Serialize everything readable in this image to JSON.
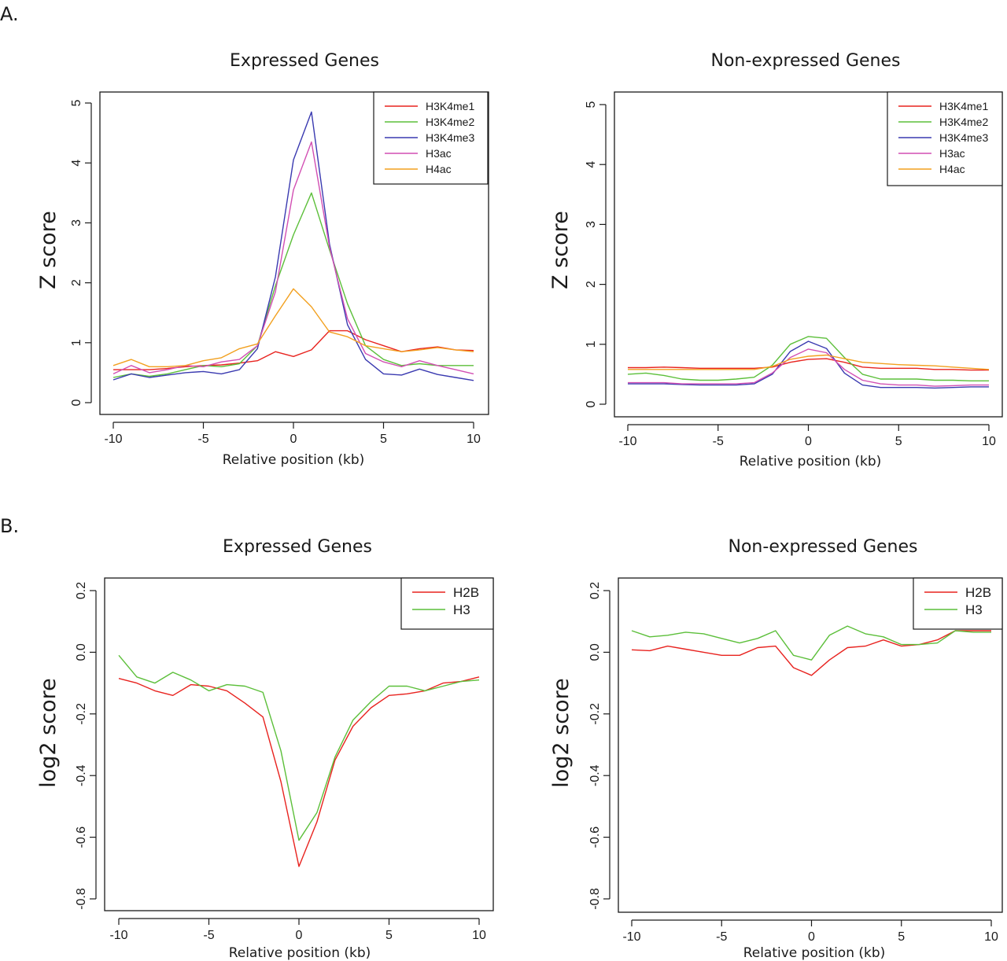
{
  "panels": [
    {
      "label": "A."
    },
    {
      "label": "B."
    }
  ],
  "chart_data": [
    {
      "type": "line",
      "title": "Expressed Genes",
      "xlabel": "Relative position (kb)",
      "ylabel": "Z score",
      "xlim": [
        -10,
        10
      ],
      "ylim": [
        0,
        5
      ],
      "xticks": [
        -10,
        -5,
        0,
        5,
        10
      ],
      "yticks": [
        0,
        1,
        2,
        3,
        4,
        5
      ],
      "x": [
        -10,
        -9,
        -8,
        -7,
        -6,
        -5,
        -4,
        -3,
        -2,
        -1,
        0,
        1,
        2,
        3,
        4,
        5,
        6,
        7,
        8,
        9,
        10
      ],
      "legend_position": "top-right",
      "series": [
        {
          "name": "H3K4me1",
          "color": "#e8231f",
          "values": [
            0.55,
            0.55,
            0.55,
            0.57,
            0.6,
            0.62,
            0.63,
            0.66,
            0.7,
            0.85,
            0.77,
            0.88,
            1.2,
            1.2,
            1.05,
            0.95,
            0.85,
            0.9,
            0.93,
            0.88,
            0.87
          ]
        },
        {
          "name": "H3K4me2",
          "color": "#5cbf3a",
          "values": [
            0.42,
            0.48,
            0.44,
            0.48,
            0.55,
            0.62,
            0.6,
            0.65,
            0.95,
            1.95,
            2.8,
            3.5,
            2.55,
            1.65,
            0.95,
            0.72,
            0.62,
            0.65,
            0.62,
            0.62,
            0.62
          ]
        },
        {
          "name": "H3K4me3",
          "color": "#3a3ab0",
          "values": [
            0.38,
            0.48,
            0.42,
            0.46,
            0.5,
            0.52,
            0.48,
            0.55,
            0.9,
            2.1,
            4.05,
            4.85,
            2.65,
            1.3,
            0.72,
            0.48,
            0.46,
            0.56,
            0.47,
            0.42,
            0.37
          ]
        },
        {
          "name": "H3ac",
          "color": "#d24fb3",
          "values": [
            0.48,
            0.62,
            0.5,
            0.55,
            0.62,
            0.6,
            0.68,
            0.72,
            0.95,
            1.85,
            3.55,
            4.35,
            2.6,
            1.4,
            0.82,
            0.68,
            0.6,
            0.7,
            0.62,
            0.55,
            0.48
          ]
        },
        {
          "name": "H4ac",
          "color": "#f2a01f",
          "values": [
            0.62,
            0.72,
            0.6,
            0.6,
            0.62,
            0.7,
            0.75,
            0.9,
            0.98,
            1.45,
            1.9,
            1.6,
            1.18,
            1.1,
            0.95,
            0.9,
            0.85,
            0.88,
            0.92,
            0.88,
            0.85
          ]
        }
      ]
    },
    {
      "type": "line",
      "title": "Non-expressed Genes",
      "xlabel": "Relative position (kb)",
      "ylabel": "Z score",
      "xlim": [
        -10,
        10
      ],
      "ylim": [
        0,
        5
      ],
      "xticks": [
        -10,
        -5,
        0,
        5,
        10
      ],
      "yticks": [
        0,
        1,
        2,
        3,
        4,
        5
      ],
      "x": [
        -10,
        -9,
        -8,
        -7,
        -6,
        -5,
        -4,
        -3,
        -2,
        -1,
        0,
        1,
        2,
        3,
        4,
        5,
        6,
        7,
        8,
        9,
        10
      ],
      "legend_position": "top-right",
      "series": [
        {
          "name": "H3K4me1",
          "color": "#e8231f",
          "values": [
            0.61,
            0.61,
            0.62,
            0.61,
            0.6,
            0.6,
            0.6,
            0.6,
            0.62,
            0.7,
            0.75,
            0.76,
            0.7,
            0.62,
            0.6,
            0.6,
            0.6,
            0.58,
            0.58,
            0.57,
            0.57
          ]
        },
        {
          "name": "H3K4me2",
          "color": "#5cbf3a",
          "values": [
            0.5,
            0.52,
            0.48,
            0.42,
            0.4,
            0.4,
            0.42,
            0.45,
            0.65,
            1.0,
            1.13,
            1.1,
            0.78,
            0.5,
            0.42,
            0.42,
            0.42,
            0.4,
            0.4,
            0.39,
            0.39
          ]
        },
        {
          "name": "H3K4me3",
          "color": "#3a3ab0",
          "values": [
            0.34,
            0.34,
            0.34,
            0.33,
            0.32,
            0.32,
            0.32,
            0.34,
            0.5,
            0.88,
            1.05,
            0.93,
            0.52,
            0.32,
            0.28,
            0.28,
            0.28,
            0.27,
            0.28,
            0.29,
            0.29
          ]
        },
        {
          "name": "H3ac",
          "color": "#d24fb3",
          "values": [
            0.36,
            0.36,
            0.36,
            0.34,
            0.34,
            0.34,
            0.34,
            0.36,
            0.52,
            0.78,
            0.92,
            0.86,
            0.58,
            0.4,
            0.34,
            0.32,
            0.32,
            0.3,
            0.31,
            0.32,
            0.32
          ]
        },
        {
          "name": "H4ac",
          "color": "#f2a01f",
          "values": [
            0.58,
            0.58,
            0.58,
            0.58,
            0.58,
            0.58,
            0.58,
            0.58,
            0.63,
            0.75,
            0.8,
            0.82,
            0.76,
            0.7,
            0.68,
            0.66,
            0.65,
            0.64,
            0.62,
            0.6,
            0.58
          ]
        }
      ]
    },
    {
      "type": "line",
      "title": "Expressed Genes",
      "xlabel": "Relative position (kb)",
      "ylabel": "log2 score",
      "xlim": [
        -10,
        10
      ],
      "ylim": [
        -0.8,
        0.2
      ],
      "xticks": [
        -10,
        -5,
        0,
        5,
        10
      ],
      "yticks": [
        -0.8,
        -0.6,
        -0.4,
        -0.2,
        0.0,
        0.2
      ],
      "ytick_labels": [
        "-0.8",
        "-0.6",
        "-0.4",
        "-0.2",
        "0.0",
        "0.2"
      ],
      "x": [
        -10,
        -9,
        -8,
        -7,
        -6,
        -5,
        -4,
        -3,
        -2,
        -1,
        0,
        1,
        2,
        3,
        4,
        5,
        6,
        7,
        8,
        9,
        10
      ],
      "legend_position": "top-right",
      "series": [
        {
          "name": "H2B",
          "color": "#e8231f",
          "values": [
            -0.085,
            -0.1,
            -0.125,
            -0.14,
            -0.105,
            -0.11,
            -0.125,
            -0.165,
            -0.21,
            -0.42,
            -0.695,
            -0.55,
            -0.35,
            -0.24,
            -0.18,
            -0.14,
            -0.135,
            -0.125,
            -0.1,
            -0.095,
            -0.08
          ]
        },
        {
          "name": "H3",
          "color": "#5cbf3a",
          "values": [
            -0.01,
            -0.08,
            -0.1,
            -0.065,
            -0.09,
            -0.125,
            -0.105,
            -0.11,
            -0.13,
            -0.32,
            -0.61,
            -0.52,
            -0.34,
            -0.22,
            -0.16,
            -0.11,
            -0.11,
            -0.125,
            -0.11,
            -0.095,
            -0.09
          ]
        }
      ]
    },
    {
      "type": "line",
      "title": "Non-expressed Genes",
      "xlabel": "Relative position (kb)",
      "ylabel": "log2 score",
      "xlim": [
        -10,
        10
      ],
      "ylim": [
        -0.8,
        0.2
      ],
      "xticks": [
        -10,
        -5,
        0,
        5,
        10
      ],
      "yticks": [
        -0.8,
        -0.6,
        -0.4,
        -0.2,
        0.0,
        0.2
      ],
      "ytick_labels": [
        "-0.8",
        "-0.6",
        "-0.4",
        "-0.2",
        "0.0",
        "0.2"
      ],
      "x": [
        -10,
        -9,
        -8,
        -7,
        -6,
        -5,
        -4,
        -3,
        -2,
        -1,
        0,
        1,
        2,
        3,
        4,
        5,
        6,
        7,
        8,
        9,
        10
      ],
      "legend_position": "top-right",
      "series": [
        {
          "name": "H2B",
          "color": "#e8231f",
          "values": [
            0.008,
            0.005,
            0.02,
            0.01,
            0.0,
            -0.01,
            -0.01,
            0.015,
            0.02,
            -0.05,
            -0.075,
            -0.025,
            0.015,
            0.02,
            0.04,
            0.02,
            0.025,
            0.04,
            0.07,
            0.07,
            0.07
          ]
        },
        {
          "name": "H3",
          "color": "#5cbf3a",
          "values": [
            0.07,
            0.05,
            0.055,
            0.065,
            0.06,
            0.045,
            0.03,
            0.045,
            0.07,
            -0.01,
            -0.025,
            0.055,
            0.085,
            0.06,
            0.05,
            0.025,
            0.025,
            0.03,
            0.07,
            0.065,
            0.065
          ]
        }
      ]
    }
  ]
}
